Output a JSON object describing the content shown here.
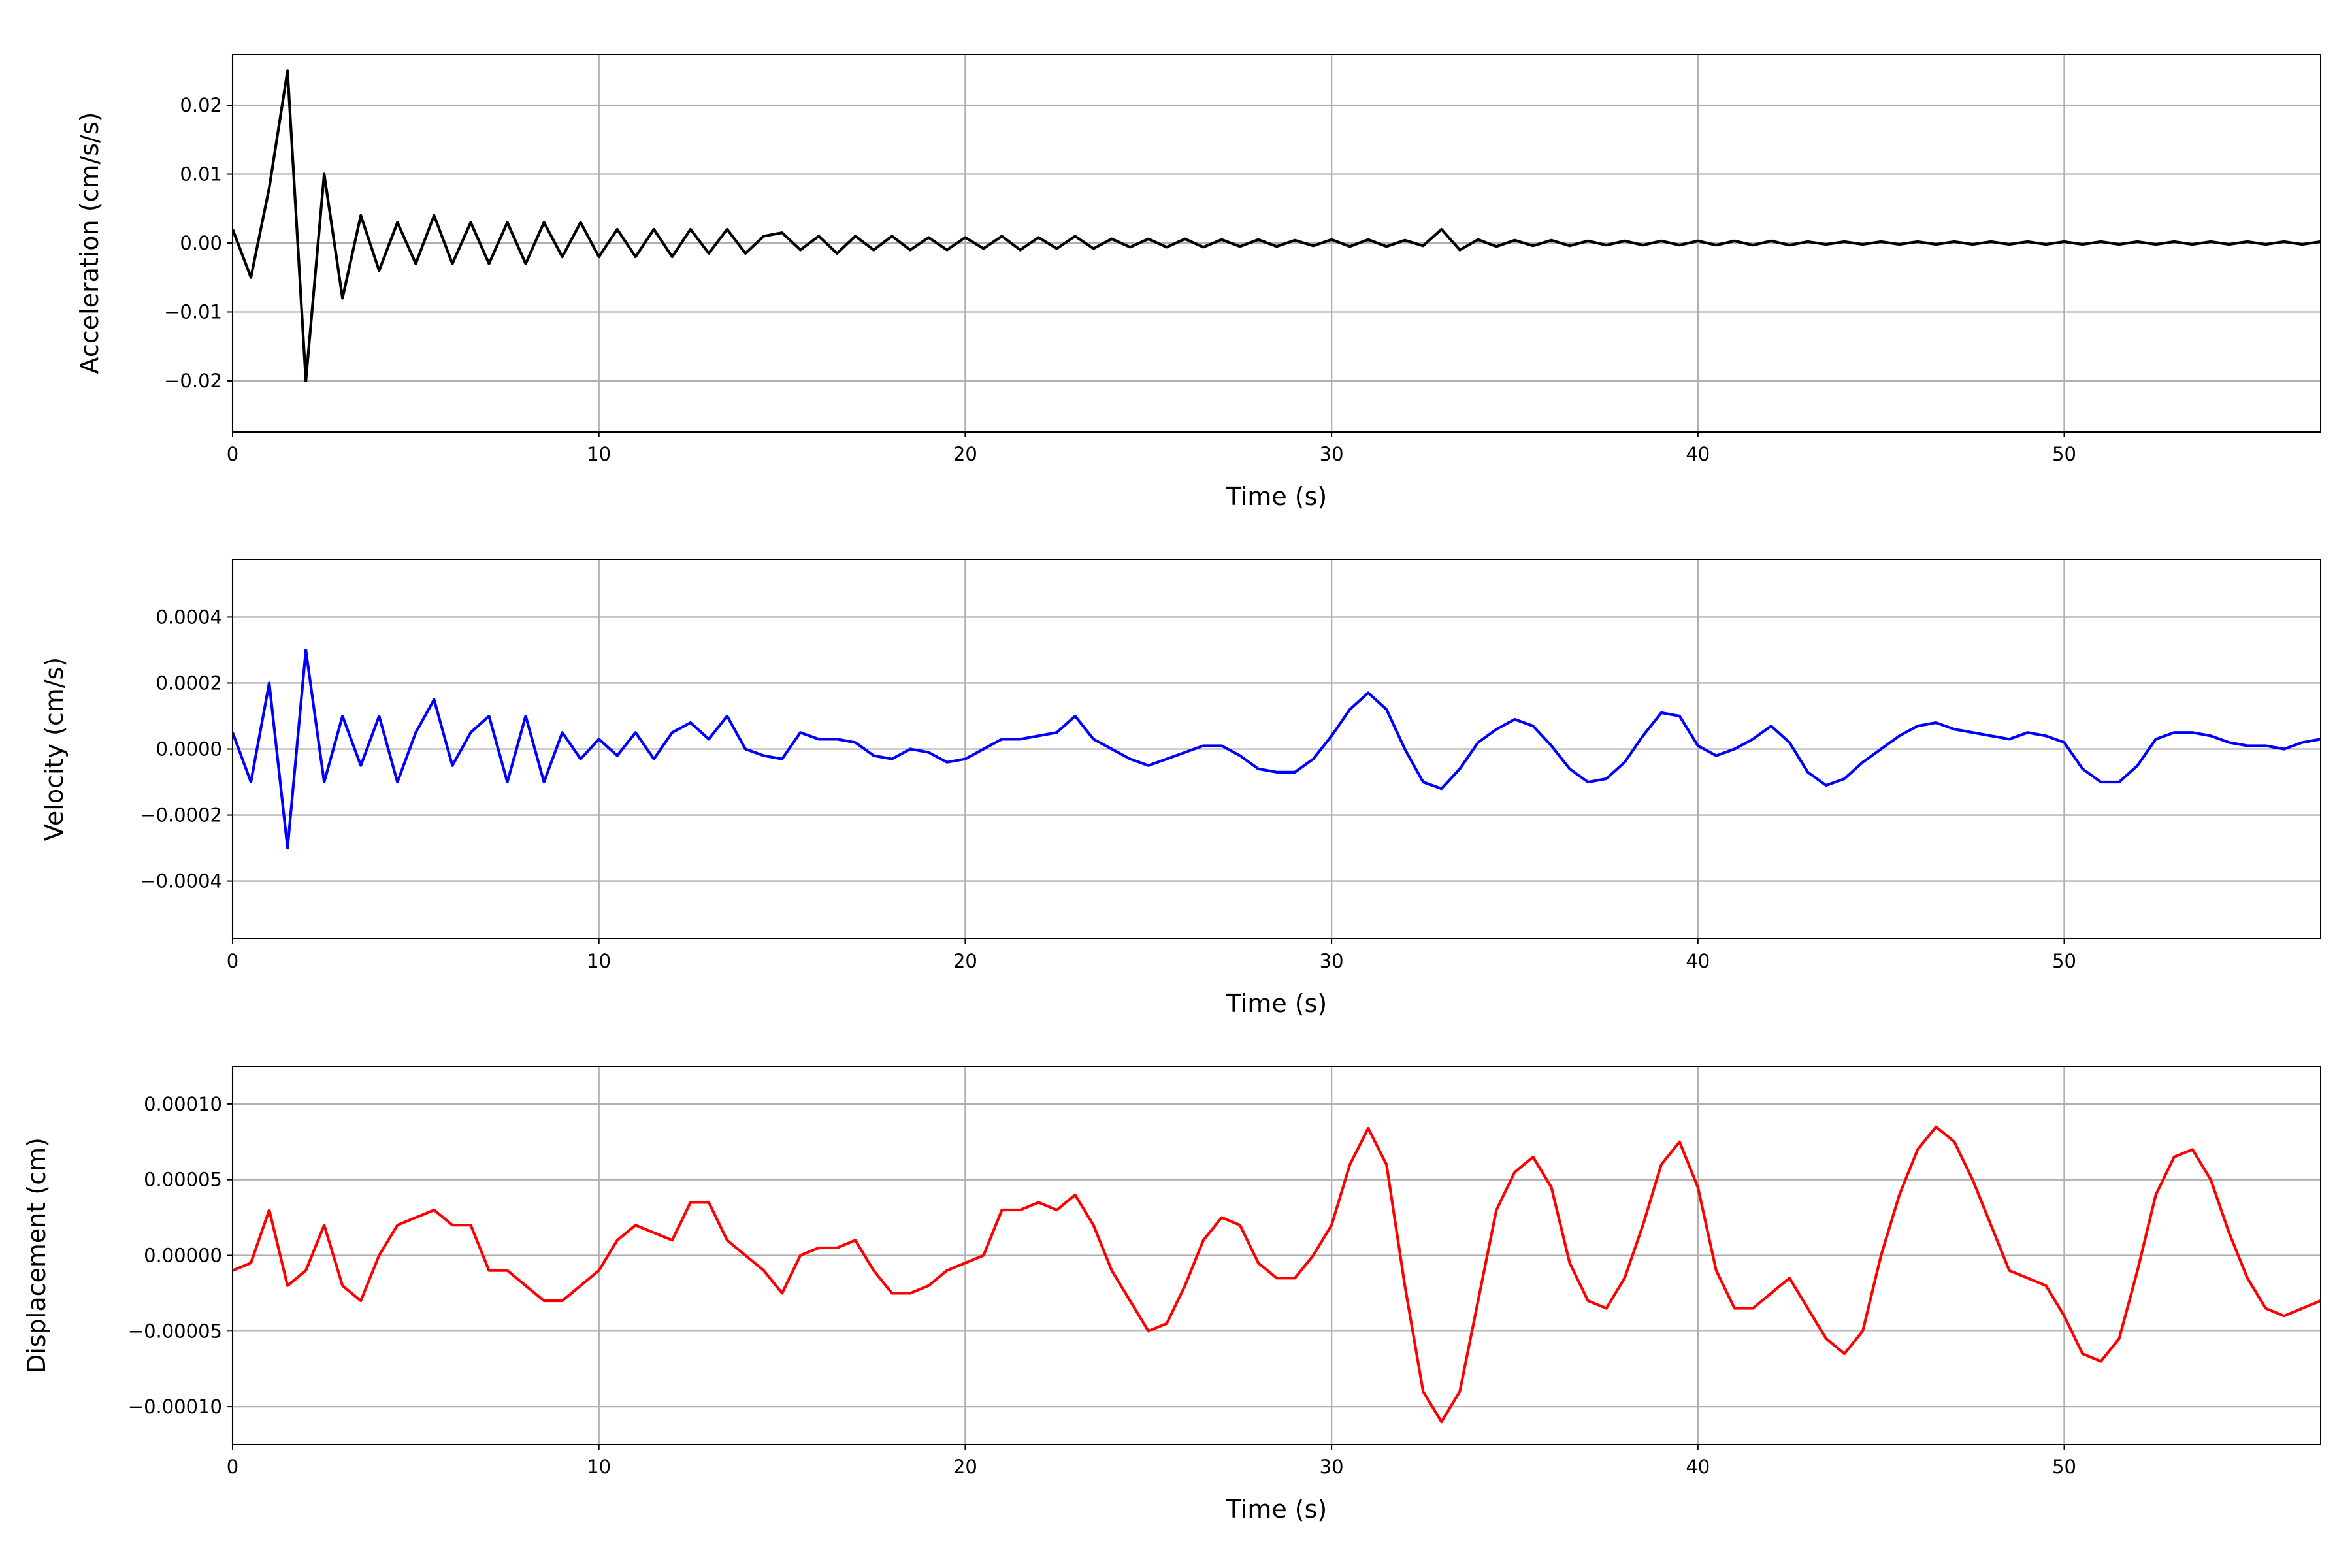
{
  "chart_data": [
    {
      "type": "line",
      "ylabel": "Acceleration (cm/s/s)",
      "xlabel": "Time (s)",
      "color": "#000000",
      "grid": true,
      "xlim": [
        0,
        57
      ],
      "xticks": [
        0,
        10,
        20,
        30,
        40,
        50
      ],
      "ylim": [
        -0.0274,
        0.0274
      ],
      "yticks": [
        {
          "value": -0.02,
          "label": "−0.02"
        },
        {
          "value": -0.01,
          "label": "−0.01"
        },
        {
          "value": 0,
          "label": "0.00"
        },
        0.01,
        0.02
      ],
      "x": [
        0,
        0.5,
        1,
        1.5,
        2,
        2.5,
        3,
        3.5,
        4,
        4.5,
        5,
        5.5,
        6,
        6.5,
        7,
        7.5,
        8,
        8.5,
        9,
        9.5,
        10,
        10.5,
        11,
        11.5,
        12,
        12.5,
        13,
        13.5,
        14,
        14.5,
        15,
        15.5,
        16,
        16.5,
        17,
        17.5,
        18,
        18.5,
        19,
        19.5,
        20,
        20.5,
        21,
        21.5,
        22,
        22.5,
        23,
        23.5,
        24,
        24.5,
        25,
        25.5,
        26,
        26.5,
        27,
        27.5,
        28,
        28.5,
        29,
        29.5,
        30,
        30.5,
        31,
        31.5,
        32,
        32.5,
        33,
        33.5,
        34,
        34.5,
        35,
        35.5,
        36,
        36.5,
        37,
        37.5,
        38,
        38.5,
        39,
        39.5,
        40,
        40.5,
        41,
        41.5,
        42,
        42.5,
        43,
        43.5,
        44,
        44.5,
        45,
        45.5,
        46,
        46.5,
        47,
        47.5,
        48,
        48.5,
        49,
        49.5,
        50,
        50.5,
        51,
        51.5,
        52,
        52.5,
        53,
        53.5,
        54,
        54.5,
        55,
        55.5,
        56,
        56.5,
        57
      ],
      "values": [
        0.002,
        -0.005,
        0.008,
        0.025,
        -0.02,
        0.01,
        -0.008,
        0.004,
        -0.004,
        0.003,
        -0.003,
        0.004,
        -0.003,
        0.003,
        -0.003,
        0.003,
        -0.003,
        0.003,
        -0.002,
        0.003,
        -0.002,
        0.002,
        -0.002,
        0.002,
        -0.002,
        0.002,
        -0.0015,
        0.002,
        -0.0015,
        0.001,
        0.0015,
        -0.001,
        0.001,
        -0.0015,
        0.001,
        -0.001,
        0.001,
        -0.001,
        0.0008,
        -0.001,
        0.0008,
        -0.0008,
        0.001,
        -0.001,
        0.0008,
        -0.0008,
        0.001,
        -0.0008,
        0.0006,
        -0.0006,
        0.0006,
        -0.0006,
        0.0006,
        -0.0006,
        0.0005,
        -0.0005,
        0.0005,
        -0.0005,
        0.0004,
        -0.0004,
        0.0005,
        -0.0005,
        0.0005,
        -0.0005,
        0.0004,
        -0.0004,
        0.002,
        -0.001,
        0.0005,
        -0.0005,
        0.0004,
        -0.0004,
        0.0004,
        -0.0004,
        0.0003,
        -0.0003,
        0.0003,
        -0.0003,
        0.0003,
        -0.0003,
        0.0003,
        -0.0003,
        0.0003,
        -0.0003,
        0.0003,
        -0.0003,
        0.0002,
        -0.0002,
        0.0002,
        -0.0002,
        0.0002,
        -0.0002,
        0.0002,
        -0.0002,
        0.0002,
        -0.0002,
        0.0002,
        -0.0002,
        0.0002,
        -0.0002,
        0.0002,
        -0.0002,
        0.0002,
        -0.0002,
        0.0002,
        -0.0002,
        0.0002,
        -0.0002,
        0.0002,
        -0.0002,
        0.0002,
        -0.0002,
        0.0002,
        -0.0002,
        0.0002
      ]
    },
    {
      "type": "line",
      "ylabel": "Velocity (cm/s)",
      "xlabel": "Time (s)",
      "color": "#0000ff",
      "grid": true,
      "xlim": [
        0,
        57
      ],
      "xticks": [
        0,
        10,
        20,
        30,
        40,
        50
      ],
      "ylim": [
        -0.000575,
        0.000575
      ],
      "yticks": [
        {
          "value": -0.0004,
          "label": "−0.0004"
        },
        {
          "value": -0.0002,
          "label": "−0.0002"
        },
        {
          "value": 0,
          "label": "0.0000"
        },
        0.0002,
        0.0004
      ],
      "x": [
        0,
        0.5,
        1,
        1.5,
        2,
        2.5,
        3,
        3.5,
        4,
        4.5,
        5,
        5.5,
        6,
        6.5,
        7,
        7.5,
        8,
        8.5,
        9,
        9.5,
        10,
        10.5,
        11,
        11.5,
        12,
        12.5,
        13,
        13.5,
        14,
        14.5,
        15,
        15.5,
        16,
        16.5,
        17,
        17.5,
        18,
        18.5,
        19,
        19.5,
        20,
        20.5,
        21,
        21.5,
        22,
        22.5,
        23,
        23.5,
        24,
        24.5,
        25,
        25.5,
        26,
        26.5,
        27,
        27.5,
        28,
        28.5,
        29,
        29.5,
        30,
        30.5,
        31,
        31.5,
        32,
        32.5,
        33,
        33.5,
        34,
        34.5,
        35,
        35.5,
        36,
        36.5,
        37,
        37.5,
        38,
        38.5,
        39,
        39.5,
        40,
        40.5,
        41,
        41.5,
        42,
        42.5,
        43,
        43.5,
        44,
        44.5,
        45,
        45.5,
        46,
        46.5,
        47,
        47.5,
        48,
        48.5,
        49,
        49.5,
        50,
        50.5,
        51,
        51.5,
        52,
        52.5,
        53,
        53.5,
        54,
        54.5,
        55,
        55.5,
        56,
        56.5,
        57
      ],
      "values": [
        5e-05,
        -0.0001,
        0.0002,
        -0.0003,
        0.0003,
        -0.0001,
        0.0001,
        -5e-05,
        0.0001,
        -0.0001,
        5e-05,
        0.00015,
        -5e-05,
        5e-05,
        0.0001,
        -0.0001,
        0.0001,
        -0.0001,
        5e-05,
        -3e-05,
        3e-05,
        -2e-05,
        5e-05,
        -3e-05,
        5e-05,
        8e-05,
        3e-05,
        0.0001,
        0,
        -2e-05,
        -3e-05,
        5e-05,
        3e-05,
        3e-05,
        2e-05,
        -2e-05,
        -3e-05,
        0,
        -1e-05,
        -4e-05,
        -3e-05,
        0,
        3e-05,
        3e-05,
        4e-05,
        5e-05,
        0.0001,
        3e-05,
        0,
        -3e-05,
        -5e-05,
        -3e-05,
        -1e-05,
        1e-05,
        1e-05,
        -2e-05,
        -6e-05,
        -7e-05,
        -7e-05,
        -3e-05,
        4e-05,
        0.00012,
        0.00017,
        0.00012,
        0,
        -0.0001,
        -0.00012,
        -6e-05,
        2e-05,
        6e-05,
        9e-05,
        7e-05,
        1e-05,
        -6e-05,
        -0.0001,
        -9e-05,
        -4e-05,
        4e-05,
        0.00011,
        0.0001,
        1e-05,
        -2e-05,
        0,
        3e-05,
        7e-05,
        2e-05,
        -7e-05,
        -0.00011,
        -9e-05,
        -4e-05,
        0,
        4e-05,
        7e-05,
        8e-05,
        6e-05,
        5e-05,
        4e-05,
        3e-05,
        5e-05,
        4e-05,
        2e-05,
        -6e-05,
        -0.0001,
        -0.0001,
        -5e-05,
        3e-05,
        5e-05,
        5e-05,
        4e-05,
        2e-05,
        1e-05,
        1e-05,
        0,
        2e-05,
        3e-05
      ]
    },
    {
      "type": "line",
      "ylabel": "Displacement (cm)",
      "xlabel": "Time (s)",
      "color": "#ff0000",
      "grid": true,
      "xlim": [
        0,
        57
      ],
      "xticks": [
        0,
        10,
        20,
        30,
        40,
        50
      ],
      "ylim": [
        -0.000125,
        0.000125
      ],
      "yticks": [
        {
          "value": -0.0001,
          "label": "−0.00010"
        },
        {
          "value": -5e-05,
          "label": "−0.00005"
        },
        {
          "value": 0,
          "label": "0.00000"
        },
        {
          "value": 5e-05,
          "label": "0.00005"
        },
        {
          "value": 0.0001,
          "label": "0.00010"
        }
      ],
      "x": [
        0,
        0.5,
        1,
        1.5,
        2,
        2.5,
        3,
        3.5,
        4,
        4.5,
        5,
        5.5,
        6,
        6.5,
        7,
        7.5,
        8,
        8.5,
        9,
        9.5,
        10,
        10.5,
        11,
        11.5,
        12,
        12.5,
        13,
        13.5,
        14,
        14.5,
        15,
        15.5,
        16,
        16.5,
        17,
        17.5,
        18,
        18.5,
        19,
        19.5,
        20,
        20.5,
        21,
        21.5,
        22,
        22.5,
        23,
        23.5,
        24,
        24.5,
        25,
        25.5,
        26,
        26.5,
        27,
        27.5,
        28,
        28.5,
        29,
        29.5,
        30,
        30.5,
        31,
        31.5,
        32,
        32.5,
        33,
        33.5,
        34,
        34.5,
        35,
        35.5,
        36,
        36.5,
        37,
        37.5,
        38,
        38.5,
        39,
        39.5,
        40,
        40.5,
        41,
        41.5,
        42,
        42.5,
        43,
        43.5,
        44,
        44.5,
        45,
        45.5,
        46,
        46.5,
        47,
        47.5,
        48,
        48.5,
        49,
        49.5,
        50,
        50.5,
        51,
        51.5,
        52,
        52.5,
        53,
        53.5,
        54,
        54.5,
        55,
        55.5,
        56,
        56.5,
        57
      ],
      "values": [
        -1e-05,
        -5e-06,
        3e-05,
        -2e-05,
        -1e-05,
        2e-05,
        -2e-05,
        -3e-05,
        0,
        2e-05,
        2.5e-05,
        3e-05,
        2e-05,
        2e-05,
        -1e-05,
        -1e-05,
        -2e-05,
        -3e-05,
        -3e-05,
        -2e-05,
        -1e-05,
        1e-05,
        2e-05,
        1.5e-05,
        1e-05,
        3.5e-05,
        3.5e-05,
        1e-05,
        0,
        -1e-05,
        -2.5e-05,
        0,
        5e-06,
        5e-06,
        1e-05,
        -1e-05,
        -2.5e-05,
        -2.5e-05,
        -2e-05,
        -1e-05,
        -5e-06,
        0,
        3e-05,
        3e-05,
        3.5e-05,
        3e-05,
        4e-05,
        2e-05,
        -1e-05,
        -3e-05,
        -5e-05,
        -4.5e-05,
        -2e-05,
        1e-05,
        2.5e-05,
        2e-05,
        -5e-06,
        -1.5e-05,
        -1.5e-05,
        0,
        2e-05,
        6e-05,
        8.4e-05,
        6e-05,
        -2e-05,
        -9e-05,
        -0.00011,
        -9e-05,
        -3e-05,
        3e-05,
        5.5e-05,
        6.5e-05,
        4.5e-05,
        -5e-06,
        -3e-05,
        -3.5e-05,
        -1.5e-05,
        2e-05,
        6e-05,
        7.5e-05,
        4.5e-05,
        -1e-05,
        -3.5e-05,
        -3.5e-05,
        -2.5e-05,
        -1.5e-05,
        -3.5e-05,
        -5.5e-05,
        -6.5e-05,
        -5e-05,
        0,
        4e-05,
        7e-05,
        8.5e-05,
        7.5e-05,
        5e-05,
        2e-05,
        -1e-05,
        -1.5e-05,
        -2e-05,
        -4e-05,
        -6.5e-05,
        -7e-05,
        -5.5e-05,
        -1e-05,
        4e-05,
        6.5e-05,
        7e-05,
        5e-05,
        1.5e-05,
        -1.5e-05,
        -3.5e-05,
        -4e-05,
        -3.5e-05,
        -3e-05
      ]
    }
  ]
}
